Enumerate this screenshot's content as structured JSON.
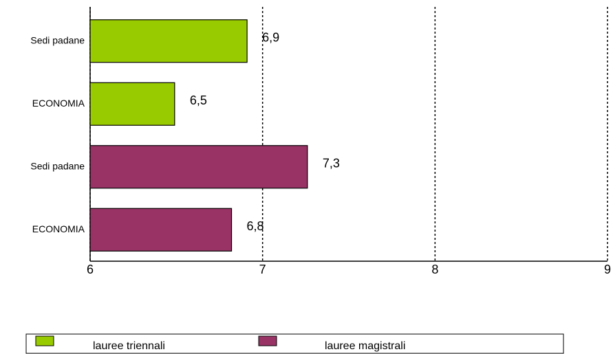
{
  "chart_data": {
    "type": "bar",
    "orientation": "horizontal",
    "categories": [
      "Sedi padane",
      "ECONOMIA",
      "Sedi padane",
      "ECONOMIA"
    ],
    "series": [
      {
        "name": "lauree triennali",
        "color": "#99cc00",
        "values": [
          6.91,
          6.49,
          null,
          null
        ],
        "value_labels": [
          "6,9",
          "6,5",
          null,
          null
        ]
      },
      {
        "name": "lauree magistrali",
        "color": "#993366",
        "values": [
          null,
          null,
          7.26,
          6.82
        ],
        "value_labels": [
          null,
          null,
          "7,3",
          "6,8"
        ]
      }
    ],
    "xlim": [
      6,
      9
    ],
    "xticks": [
      6,
      7,
      8,
      9
    ],
    "grid": true,
    "legend": "bottom"
  }
}
